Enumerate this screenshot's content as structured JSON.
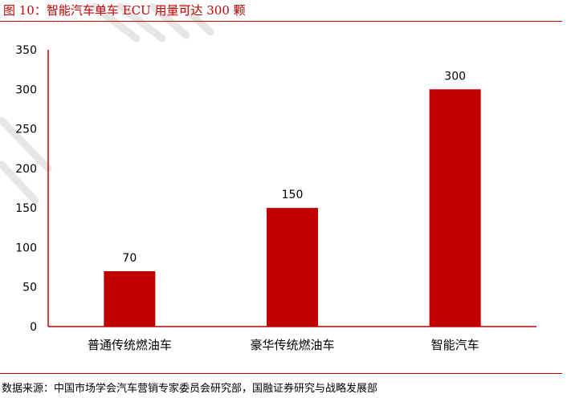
{
  "figure": {
    "title": "图 10：智能汽车单车 ECU 用量可达 300 颗",
    "source": "数据来源：中国市场学会汽车营销专家委员会研究部，国融证券研究与战略发展部"
  },
  "colors": {
    "accent": "#c00000",
    "bar": "#c00000"
  },
  "chart_data": {
    "type": "bar",
    "title": "智能汽车单车 ECU 用量可达 300 颗",
    "categories": [
      "普通传统燃油车",
      "豪华传统燃油车",
      "智能汽车"
    ],
    "values": [
      70,
      150,
      300
    ],
    "data_labels": [
      "70",
      "150",
      "300"
    ],
    "ylim": [
      0,
      350
    ],
    "yticks": [
      0,
      50,
      100,
      150,
      200,
      250,
      300,
      350
    ],
    "ytick_labels": [
      "0",
      "50",
      "100",
      "150",
      "200",
      "250",
      "300",
      "350"
    ],
    "grid": false,
    "legend": "none"
  }
}
